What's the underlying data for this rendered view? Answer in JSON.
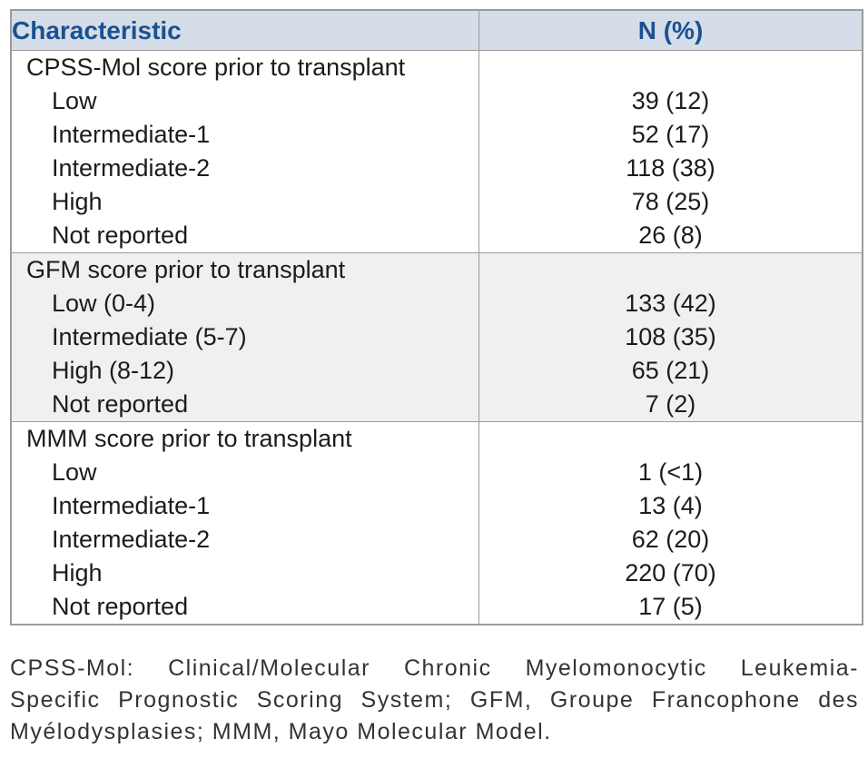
{
  "table": {
    "header": {
      "characteristic": "Characteristic",
      "n_pct": "N (%)"
    },
    "sections": [
      {
        "title": "CPSS-Mol score prior to transplant",
        "rows": [
          {
            "label": "Low",
            "value": "39 (12)"
          },
          {
            "label": "Intermediate-1",
            "value": "52 (17)"
          },
          {
            "label": "Intermediate-2",
            "value": "118 (38)"
          },
          {
            "label": "High",
            "value": "78 (25)"
          },
          {
            "label": "Not reported",
            "value": "26 (8)"
          }
        ]
      },
      {
        "title": "GFM score prior to transplant",
        "rows": [
          {
            "label": "Low (0-4)",
            "value": "133 (42)"
          },
          {
            "label": "Intermediate (5-7)",
            "value": "108 (35)"
          },
          {
            "label": "High (8-12)",
            "value": "65 (21)"
          },
          {
            "label": "Not reported",
            "value": "7 (2)"
          }
        ]
      },
      {
        "title": "MMM score prior to transplant",
        "rows": [
          {
            "label": "Low",
            "value": "1 (<1)"
          },
          {
            "label": "Intermediate-1",
            "value": "13 (4)"
          },
          {
            "label": "Intermediate-2",
            "value": "62 (20)"
          },
          {
            "label": "High",
            "value": "220 (70)"
          },
          {
            "label": "Not reported",
            "value": "17 (5)"
          }
        ]
      }
    ]
  },
  "footnote": {
    "full_text": "CPSS-Mol: Clinical/Molecular Chronic Myelomonocytic Leukemia-Specific Prognostic Scoring System; GFM, Groupe Francophone des Myélodysplasies; MMM, Mayo Molecular Model.",
    "lines": [
      "CPSS-Mol: Clinical/Molecular Chronic Myelomonocytic Leukemia-",
      "Specific Prognostic Scoring System; GFM, Groupe Francophone des",
      "Myélodysplasies; MMM, Mayo Molecular Model."
    ]
  },
  "colors": {
    "header_bg": "#d4dde8",
    "header_text": "#1b5191",
    "border": "#9b9b9b",
    "section_alt_bg": "#f0f0f0",
    "body_text": "#1c1c1c",
    "footnote_text": "#333333"
  }
}
